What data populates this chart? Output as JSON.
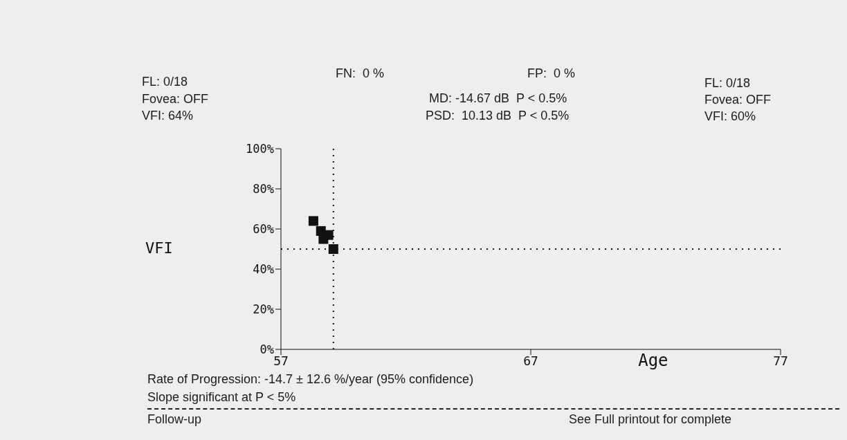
{
  "chart_data": {
    "type": "scatter",
    "xlabel": "Age",
    "ylabel": "VFI",
    "x": [
      58.3,
      58.6,
      58.7,
      58.9,
      59.1
    ],
    "values": [
      64,
      59,
      55,
      57,
      50
    ],
    "color": "#111111",
    "marker": "square",
    "xlim": [
      57,
      77
    ],
    "xticks": [
      57,
      67,
      77
    ],
    "ylim": [
      0,
      100
    ],
    "yticks": [
      {
        "value": 0,
        "label": "0%"
      },
      {
        "value": 20,
        "label": "20%"
      },
      {
        "value": 40,
        "label": "40%"
      },
      {
        "value": 60,
        "label": "60%"
      },
      {
        "value": 80,
        "label": "80%"
      },
      {
        "value": 100,
        "label": "100%"
      }
    ],
    "grid": false,
    "ref_lines": [
      {
        "axis": "x",
        "value": 59.1,
        "line_style": "dotted",
        "color": "#111111"
      },
      {
        "axis": "y",
        "value": 50,
        "line_style": "dotted",
        "color": "#111111"
      }
    ],
    "annotations": [
      "FL: 0/18",
      "Fovea: OFF",
      "VFI: 64%",
      "FN:  0 %",
      "FP:  0 %",
      "MD: -14.67 dB  P < 0.5%",
      "PSD:  10.13 dB  P < 0.5%",
      "FL: 0/18",
      "Fovea: OFF",
      "VFI: 60%",
      "Rate of Progression: -14.7 ± 12.6 %/year (95% confidence)",
      "Slope significant at P < 5%",
      "Follow-up",
      "See Full printout for complete"
    ]
  }
}
